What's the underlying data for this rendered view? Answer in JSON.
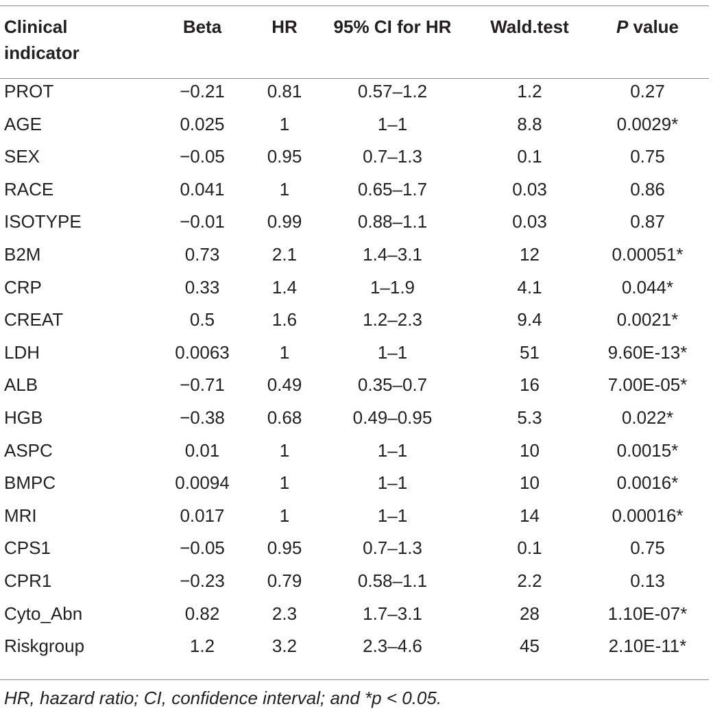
{
  "table": {
    "headers": {
      "clinical_line1": "Clinical",
      "clinical_line2": "indicator",
      "beta": "Beta",
      "hr": "HR",
      "ci": "95% CI for HR",
      "wald": "Wald.test",
      "p_italic": "P",
      "p_rest": " value"
    },
    "rows": [
      {
        "indicator": "PROT",
        "beta": "−0.21",
        "hr": "0.81",
        "ci": "0.57–1.2",
        "wald": "1.2",
        "p": "0.27"
      },
      {
        "indicator": "AGE",
        "beta": "0.025",
        "hr": "1",
        "ci": "1–1",
        "wald": "8.8",
        "p": "0.0029*"
      },
      {
        "indicator": "SEX",
        "beta": "−0.05",
        "hr": "0.95",
        "ci": "0.7–1.3",
        "wald": "0.1",
        "p": "0.75"
      },
      {
        "indicator": "RACE",
        "beta": "0.041",
        "hr": "1",
        "ci": "0.65–1.7",
        "wald": "0.03",
        "p": "0.86"
      },
      {
        "indicator": "ISOTYPE",
        "beta": "−0.01",
        "hr": "0.99",
        "ci": "0.88–1.1",
        "wald": "0.03",
        "p": "0.87"
      },
      {
        "indicator": "B2M",
        "beta": "0.73",
        "hr": "2.1",
        "ci": "1.4–3.1",
        "wald": "12",
        "p": "0.00051*"
      },
      {
        "indicator": "CRP",
        "beta": "0.33",
        "hr": "1.4",
        "ci": "1–1.9",
        "wald": "4.1",
        "p": "0.044*"
      },
      {
        "indicator": "CREAT",
        "beta": "0.5",
        "hr": "1.6",
        "ci": "1.2–2.3",
        "wald": "9.4",
        "p": "0.0021*"
      },
      {
        "indicator": "LDH",
        "beta": "0.0063",
        "hr": "1",
        "ci": "1–1",
        "wald": "51",
        "p": "9.60E-13*"
      },
      {
        "indicator": "ALB",
        "beta": "−0.71",
        "hr": "0.49",
        "ci": "0.35–0.7",
        "wald": "16",
        "p": "7.00E-05*"
      },
      {
        "indicator": "HGB",
        "beta": "−0.38",
        "hr": "0.68",
        "ci": "0.49–0.95",
        "wald": "5.3",
        "p": "0.022*"
      },
      {
        "indicator": "ASPC",
        "beta": "0.01",
        "hr": "1",
        "ci": "1–1",
        "wald": "10",
        "p": "0.0015*"
      },
      {
        "indicator": "BMPC",
        "beta": "0.0094",
        "hr": "1",
        "ci": "1–1",
        "wald": "10",
        "p": "0.0016*"
      },
      {
        "indicator": "MRI",
        "beta": "0.017",
        "hr": "1",
        "ci": "1–1",
        "wald": "14",
        "p": "0.00016*"
      },
      {
        "indicator": "CPS1",
        "beta": "−0.05",
        "hr": "0.95",
        "ci": "0.7–1.3",
        "wald": "0.1",
        "p": "0.75"
      },
      {
        "indicator": "CPR1",
        "beta": "−0.23",
        "hr": "0.79",
        "ci": "0.58–1.1",
        "wald": "2.2",
        "p": "0.13"
      },
      {
        "indicator": "Cyto_Abn",
        "beta": "0.82",
        "hr": "2.3",
        "ci": "1.7–3.1",
        "wald": "28",
        "p": "1.10E-07*"
      },
      {
        "indicator": "Riskgroup",
        "beta": "1.2",
        "hr": "3.2",
        "ci": "2.3–4.6",
        "wald": "45",
        "p": "2.10E-11*"
      }
    ]
  },
  "footnote": "HR, hazard ratio; CI, confidence interval; and *p < 0.05."
}
